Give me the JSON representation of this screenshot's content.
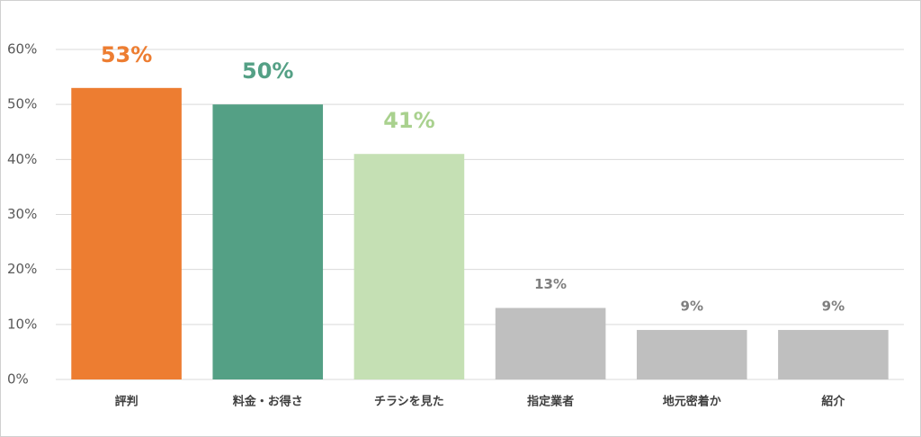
{
  "chart_data": {
    "type": "bar",
    "categories": [
      "評判",
      "料金・お得さ",
      "チラシを見た",
      "指定業者",
      "地元密着か",
      "紹介"
    ],
    "values": [
      53,
      50,
      41,
      13,
      9,
      9
    ],
    "value_labels": [
      "53%",
      "50%",
      "41%",
      "13%",
      "9%",
      "9%"
    ],
    "colors": [
      "#ed7d31",
      "#54a085",
      "#c5e0b4",
      "#bfbfbf",
      "#bfbfbf",
      "#bfbfbf"
    ],
    "value_label_colors": [
      "#ed7d31",
      "#54a085",
      "#a9d18e",
      "#7f7f7f",
      "#7f7f7f",
      "#7f7f7f"
    ],
    "ylim": [
      0,
      60
    ],
    "yticks": [
      {
        "value": 0,
        "label": "0%"
      },
      {
        "value": 10,
        "label": "10%"
      },
      {
        "value": 20,
        "label": "20%"
      },
      {
        "value": 30,
        "label": "30%"
      },
      {
        "value": 40,
        "label": "40%"
      },
      {
        "value": 50,
        "label": "50%"
      },
      {
        "value": 60,
        "label": "60%"
      }
    ],
    "grid": true
  }
}
